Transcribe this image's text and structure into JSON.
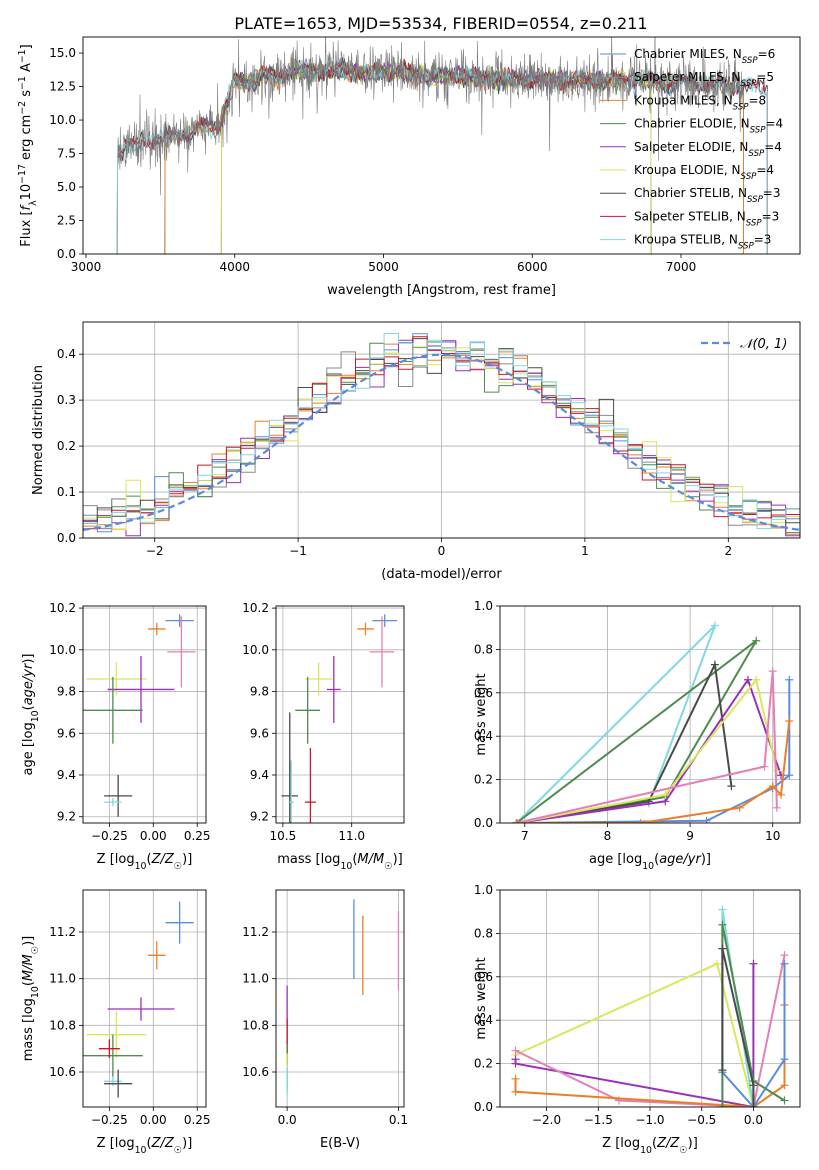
{
  "title": "PLATE=1653, MJD=53534, FIBERID=0554, z=0.211",
  "colors": {
    "Chabrier MILES": "#5b8bdc",
    "Salpeter MILES": "#8a8a8a",
    "Kroupa MILES": "#e8802a",
    "Chabrier ELODIE": "#4f8a4f",
    "Salpeter ELODIE": "#9b2fb8",
    "Kroupa ELODIE": "#d8e85a",
    "Chabrier STELIB": "#4a4a4a",
    "Salpeter STELIB": "#c8182a",
    "Kroupa STELIB": "#80d8e0",
    "pink": "#e57fb8",
    "grid": "#b0b0b0"
  },
  "legend_spectrum": [
    {
      "pre": "Chabrier MILES, N",
      "sub": "SSP",
      "post": "=6",
      "color_key": "Chabrier MILES"
    },
    {
      "pre": "Salpeter MILES, N",
      "sub": "SSP",
      "post": "=5",
      "color_key": "Salpeter MILES"
    },
    {
      "pre": "Kroupa MILES, N",
      "sub": "SSP",
      "post": "=8",
      "color_key": "Kroupa MILES"
    },
    {
      "pre": "Chabrier ELODIE, N",
      "sub": "SSP",
      "post": "=4",
      "color_key": "Chabrier ELODIE"
    },
    {
      "pre": "Salpeter ELODIE, N",
      "sub": "SSP",
      "post": "=4",
      "color_key": "Salpeter ELODIE"
    },
    {
      "pre": "Kroupa ELODIE, N",
      "sub": "SSP",
      "post": "=4",
      "color_key": "Kroupa ELODIE"
    },
    {
      "pre": "Chabrier STELIB, N",
      "sub": "SSP",
      "post": "=3",
      "color_key": "Chabrier STELIB"
    },
    {
      "pre": "Salpeter STELIB, N",
      "sub": "SSP",
      "post": "=3",
      "color_key": "Salpeter STELIB"
    },
    {
      "pre": "Kroupa STELIB, N",
      "sub": "SSP",
      "post": "=3",
      "color_key": "Kroupa STELIB"
    }
  ],
  "chart_data": [
    {
      "id": "spectrum",
      "type": "line",
      "xlabel": "wavelength [Angstrom, rest frame]",
      "ylabel": "Flux [fλ10⁻¹⁷ erg cm⁻² s⁻¹ A⁻¹]",
      "xlim": [
        2980,
        7800
      ],
      "ylim": [
        0,
        16.2
      ],
      "xticks": [
        3000,
        4000,
        5000,
        6000,
        7000
      ],
      "yticks": [
        0.0,
        2.5,
        5.0,
        7.5,
        10.0,
        12.5,
        15.0
      ],
      "grid": false,
      "legend_placement": "upper right",
      "continuum": [
        [
          3200,
          7.2
        ],
        [
          3300,
          7.9
        ],
        [
          3400,
          8.6
        ],
        [
          3500,
          8.4
        ],
        [
          3600,
          9.0
        ],
        [
          3700,
          8.9
        ],
        [
          3800,
          9.6
        ],
        [
          3900,
          9.7
        ],
        [
          4000,
          13.0
        ],
        [
          4100,
          12.8
        ],
        [
          4200,
          13.4
        ],
        [
          4300,
          13.2
        ],
        [
          4400,
          13.8
        ],
        [
          4500,
          13.6
        ],
        [
          4700,
          13.7
        ],
        [
          4900,
          13.5
        ],
        [
          5100,
          13.7
        ],
        [
          5300,
          13.3
        ],
        [
          5500,
          13.3
        ],
        [
          5700,
          13.1
        ],
        [
          5900,
          13.0
        ],
        [
          6100,
          13.1
        ],
        [
          6300,
          12.9
        ],
        [
          6500,
          13.0
        ],
        [
          6700,
          13.0
        ],
        [
          6900,
          12.8
        ],
        [
          7100,
          12.7
        ],
        [
          7300,
          12.6
        ],
        [
          7500,
          12.4
        ],
        [
          7600,
          12.3
        ]
      ],
      "series_ranges": [
        {
          "color_key": "Chabrier MILES",
          "start": 3530,
          "end": 7420
        },
        {
          "color_key": "Salpeter MILES",
          "start": 3530,
          "end": 7420
        },
        {
          "color_key": "Kroupa MILES",
          "start": 3530,
          "end": 7420
        },
        {
          "color_key": "Chabrier ELODIE",
          "start": 3910,
          "end": 6800
        },
        {
          "color_key": "Salpeter ELODIE",
          "start": 3910,
          "end": 6800
        },
        {
          "color_key": "Kroupa ELODIE",
          "start": 3910,
          "end": 6800
        },
        {
          "color_key": "Chabrier STELIB",
          "start": 3210,
          "end": 7580
        },
        {
          "color_key": "Salpeter STELIB",
          "start": 3210,
          "end": 7580
        },
        {
          "color_key": "Kroupa STELIB",
          "start": 3210,
          "end": 7580
        }
      ],
      "data_range": [
        3210,
        7420
      ]
    },
    {
      "id": "residuals",
      "type": "histogram",
      "xlabel": "(data-model)/error",
      "ylabel": "Normed distribution",
      "xlim": [
        -2.5,
        2.5
      ],
      "ylim": [
        0,
        0.47
      ],
      "xticks": [
        -2,
        -1,
        0,
        1,
        2
      ],
      "yticks": [
        0.0,
        0.1,
        0.2,
        0.3,
        0.4
      ],
      "grid": true,
      "legend_placement": "upper right",
      "legend_label": "𝒩(0, 1)",
      "normal_curve": {
        "mean": 0,
        "sigma": 1
      }
    },
    {
      "id": "z-age",
      "type": "errorbar",
      "xlabel": "Z [log10(Z/Z☉)]",
      "ylabel": "age  [log10(age/yr)]",
      "xlim": [
        -0.4,
        0.3
      ],
      "ylim": [
        9.17,
        10.21
      ],
      "xticks": [
        -0.25,
        0.0,
        0.25
      ],
      "yticks": [
        9.2,
        9.4,
        9.6,
        9.8,
        10.0,
        10.2
      ],
      "grid": true,
      "points": [
        {
          "color_key": "Chabrier MILES",
          "x": 0.15,
          "xerr": 0.08,
          "y": 10.14,
          "yerr": 0.03
        },
        {
          "color_key": "Kroupa MILES",
          "x": 0.02,
          "xerr": 0.05,
          "y": 10.1,
          "yerr": 0.03
        },
        {
          "color_key": "pink",
          "x": 0.16,
          "xerr": 0.08,
          "y": 9.99,
          "yerr": 0.17
        },
        {
          "color_key": "Kroupa ELODIE",
          "x": -0.21,
          "xerr": 0.17,
          "y": 9.86,
          "yerr": 0.08
        },
        {
          "color_key": "Salpeter ELODIE",
          "x": -0.07,
          "xerr": 0.19,
          "y": 9.81,
          "yerr": 0.16
        },
        {
          "color_key": "Chabrier ELODIE",
          "x": -0.23,
          "xerr": 0.17,
          "y": 9.71,
          "yerr": 0.16
        },
        {
          "color_key": "Chabrier STELIB",
          "x": -0.2,
          "xerr": 0.08,
          "y": 9.3,
          "yerr": 0.1
        },
        {
          "color_key": "Kroupa STELIB",
          "x": -0.23,
          "xerr": 0.05,
          "y": 9.27,
          "yerr": 0.02
        }
      ]
    },
    {
      "id": "mass-age",
      "type": "errorbar",
      "xlabel": "mass [log10(M/M☉)]",
      "ylabel": "",
      "xlim": [
        10.45,
        11.38
      ],
      "ylim": [
        9.17,
        10.21
      ],
      "xticks": [
        10.5,
        11.0
      ],
      "yticks": [
        9.2,
        9.4,
        9.6,
        9.8,
        10.0,
        10.2
      ],
      "grid": true,
      "points": [
        {
          "color_key": "Chabrier MILES",
          "x": 11.24,
          "xerr": 0.09,
          "y": 10.14,
          "yerr": 0.03
        },
        {
          "color_key": "Kroupa MILES",
          "x": 11.1,
          "xerr": 0.06,
          "y": 10.1,
          "yerr": 0.03
        },
        {
          "color_key": "pink",
          "x": 11.22,
          "xerr": 0.09,
          "y": 9.99,
          "yerr": 0.17
        },
        {
          "color_key": "Kroupa ELODIE",
          "x": 10.76,
          "xerr": 0.1,
          "y": 9.86,
          "yerr": 0.08
        },
        {
          "color_key": "Salpeter ELODIE",
          "x": 10.87,
          "xerr": 0.05,
          "y": 9.81,
          "yerr": 0.16
        },
        {
          "color_key": "Chabrier ELODIE",
          "x": 10.68,
          "xerr": 0.09,
          "y": 9.71,
          "yerr": 0.16
        },
        {
          "color_key": "Chabrier STELIB",
          "x": 10.55,
          "xerr": 0.06,
          "y": 9.3,
          "yerr": 0.4
        },
        {
          "color_key": "Kroupa STELIB",
          "x": 10.56,
          "xerr": 0.02,
          "y": 9.27,
          "yerr": 0.2
        },
        {
          "color_key": "Salpeter STELIB",
          "x": 10.7,
          "xerr": 0.04,
          "y": 9.27,
          "yerr": 0.26
        }
      ]
    },
    {
      "id": "age-weight",
      "type": "line",
      "xlabel": "age  [log10(age/yr)]",
      "ylabel": "mass weight",
      "xlim": [
        6.7,
        10.33
      ],
      "ylim": [
        0,
        1.0
      ],
      "xticks": [
        7,
        8,
        9,
        10
      ],
      "yticks": [
        0.0,
        0.2,
        0.4,
        0.6,
        0.8,
        1.0
      ],
      "grid": true,
      "lines": [
        {
          "color_key": "Kroupa STELIB",
          "x": [
            6.9,
            8.5,
            9.3,
            6.9
          ],
          "y": [
            0.0,
            0.09,
            0.91,
            0.0
          ]
        },
        {
          "color_key": "Chabrier ELODIE",
          "x": [
            6.9,
            8.7,
            9.8,
            6.9
          ],
          "y": [
            0.0,
            0.12,
            0.84,
            0.0
          ]
        },
        {
          "color_key": "Chabrier STELIB",
          "x": [
            6.9,
            8.5,
            9.3,
            9.5
          ],
          "y": [
            0.0,
            0.1,
            0.73,
            0.17
          ]
        },
        {
          "color_key": "Salpeter ELODIE",
          "x": [
            6.9,
            8.7,
            9.7,
            10.1
          ],
          "y": [
            0.0,
            0.1,
            0.66,
            0.22
          ]
        },
        {
          "color_key": "Kroupa ELODIE",
          "x": [
            6.9,
            8.7,
            9.8,
            10.05
          ],
          "y": [
            0.0,
            0.13,
            0.66,
            0.24
          ]
        },
        {
          "color_key": "pink",
          "x": [
            6.9,
            9.9,
            10.0,
            10.05
          ],
          "y": [
            0.0,
            0.26,
            0.7,
            0.07
          ]
        },
        {
          "color_key": "Chabrier MILES",
          "x": [
            6.9,
            9.2,
            10.0,
            10.2,
            10.2
          ],
          "y": [
            0.0,
            0.01,
            0.16,
            0.22,
            0.66
          ]
        },
        {
          "color_key": "Kroupa MILES",
          "x": [
            6.9,
            8.4,
            9.6,
            10.0,
            10.1,
            10.2
          ],
          "y": [
            0.0,
            0.0,
            0.07,
            0.17,
            0.13,
            0.47
          ]
        }
      ]
    },
    {
      "id": "z-mass",
      "type": "errorbar",
      "xlabel": "Z [log10(Z/Z☉)]",
      "ylabel": "mass [log10(M/M☉)]",
      "xlim": [
        -0.4,
        0.3
      ],
      "ylim": [
        10.45,
        11.38
      ],
      "xticks": [
        -0.25,
        0.0,
        0.25
      ],
      "yticks": [
        10.6,
        10.8,
        11.0,
        11.2
      ],
      "grid": true,
      "points": [
        {
          "color_key": "Chabrier MILES",
          "x": 0.15,
          "xerr": 0.08,
          "y": 11.24,
          "yerr": 0.09
        },
        {
          "color_key": "Kroupa MILES",
          "x": 0.02,
          "xerr": 0.05,
          "y": 11.1,
          "yerr": 0.06
        },
        {
          "color_key": "Salpeter ELODIE",
          "x": -0.07,
          "xerr": 0.19,
          "y": 10.87,
          "yerr": 0.05
        },
        {
          "color_key": "Kroupa ELODIE",
          "x": -0.21,
          "xerr": 0.17,
          "y": 10.76,
          "yerr": 0.1
        },
        {
          "color_key": "Chabrier ELODIE",
          "x": -0.23,
          "xerr": 0.17,
          "y": 10.67,
          "yerr": 0.09
        },
        {
          "color_key": "Salpeter STELIB",
          "x": -0.25,
          "xerr": 0.06,
          "y": 10.7,
          "yerr": 0.04
        },
        {
          "color_key": "Kroupa STELIB",
          "x": -0.23,
          "xerr": 0.05,
          "y": 10.56,
          "yerr": 0.02
        },
        {
          "color_key": "Chabrier STELIB",
          "x": -0.2,
          "xerr": 0.08,
          "y": 10.55,
          "yerr": 0.06
        }
      ]
    },
    {
      "id": "ebv-mass",
      "type": "errorbar",
      "xlabel": "E(B-V)",
      "ylabel": "",
      "xlim": [
        -0.01,
        0.105
      ],
      "ylim": [
        10.45,
        11.38
      ],
      "xticks": [
        0.0,
        0.1
      ],
      "yticks": [
        10.6,
        10.8,
        11.0,
        11.2
      ],
      "grid": true,
      "points": [
        {
          "color_key": "Chabrier MILES",
          "x": 0.06,
          "xerr": 0,
          "y": 11.17,
          "yerr": 0.17
        },
        {
          "color_key": "Kroupa MILES",
          "x": 0.068,
          "xerr": 0,
          "y": 11.1,
          "yerr": 0.17
        },
        {
          "color_key": "pink",
          "x": 0.1,
          "xerr": 0,
          "y": 11.12,
          "yerr": 0.17
        },
        {
          "color_key": "Salpeter ELODIE",
          "x": 0.0,
          "xerr": 0,
          "y": 10.8,
          "yerr": 0.17
        },
        {
          "color_key": "Salpeter STELIB",
          "x": 0.0,
          "xerr": 0,
          "y": 10.73,
          "yerr": 0.1
        },
        {
          "color_key": "Chabrier ELODIE",
          "x": 0.0,
          "xerr": 0,
          "y": 10.62,
          "yerr": 0.1
        },
        {
          "color_key": "Kroupa ELODIE",
          "x": 0.0,
          "xerr": 0,
          "y": 10.6,
          "yerr": 0.08
        },
        {
          "color_key": "Kroupa STELIB",
          "x": 0.0,
          "xerr": 0,
          "y": 10.56,
          "yerr": 0.06
        }
      ]
    },
    {
      "id": "z-weight",
      "type": "line",
      "xlabel": "Z [log10(Z/Z☉)]",
      "ylabel": "mass weight",
      "xlim": [
        -2.45,
        0.45
      ],
      "ylim": [
        0,
        1.0
      ],
      "xticks": [
        -2.0,
        -1.5,
        -1.0,
        -0.5,
        0.0
      ],
      "yticks": [
        0.0,
        0.2,
        0.4,
        0.6,
        0.8,
        1.0
      ],
      "grid": true,
      "lines": [
        {
          "color_key": "Kroupa ELODIE",
          "x": [
            -2.3,
            -0.35,
            0.0
          ],
          "y": [
            0.24,
            0.66,
            0.0
          ]
        },
        {
          "color_key": "Salpeter ELODIE",
          "x": [
            -2.3,
            -2.3,
            0.0,
            0.0
          ],
          "y": [
            0.22,
            0.2,
            0.0,
            0.66
          ]
        },
        {
          "color_key": "pink",
          "x": [
            -2.3,
            -1.3,
            0.0,
            0.3
          ],
          "y": [
            0.26,
            0.03,
            0.0,
            0.7
          ]
        },
        {
          "color_key": "Kroupa MILES",
          "x": [
            -2.3,
            -2.3,
            0.0,
            0.3,
            0.3
          ],
          "y": [
            0.13,
            0.07,
            0.0,
            0.1,
            0.47
          ]
        },
        {
          "color_key": "Chabrier MILES",
          "x": [
            -0.3,
            0.0,
            0.3,
            0.3
          ],
          "y": [
            0.16,
            0.0,
            0.22,
            0.66
          ]
        },
        {
          "color_key": "Kroupa STELIB",
          "x": [
            -0.3,
            -0.3,
            0.0
          ],
          "y": [
            0.0,
            0.91,
            0.0
          ]
        },
        {
          "color_key": "Chabrier ELODIE",
          "x": [
            -0.3,
            -0.3,
            0.0,
            0.3
          ],
          "y": [
            0.0,
            0.84,
            0.12,
            0.03
          ]
        },
        {
          "color_key": "Chabrier STELIB",
          "x": [
            -0.3,
            -0.3,
            0.0,
            0.0
          ],
          "y": [
            0.17,
            0.73,
            0.1,
            0.0
          ]
        }
      ]
    }
  ]
}
